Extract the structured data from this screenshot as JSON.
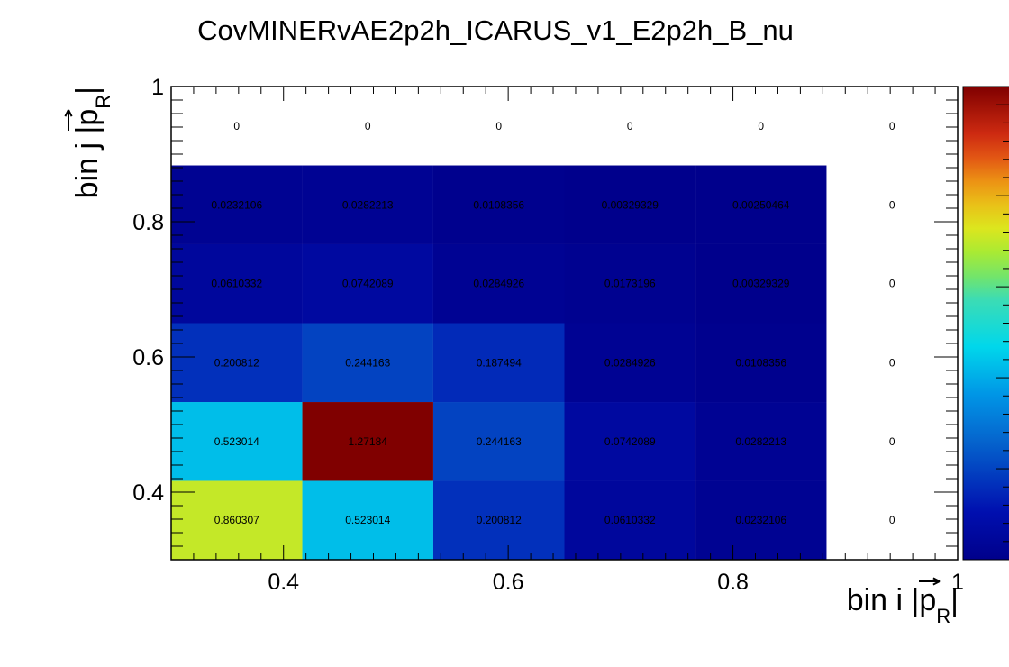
{
  "chart_data": {
    "type": "heatmap",
    "title": "CovMINERvAE2p2h_ICARUS_v1_E2p2h_B_nu",
    "xlabel": "bin i |p_R|",
    "ylabel": "bin j |p_R|",
    "x_axis_label": {
      "prefix": "bin i |",
      "symbol": "p",
      "subscript": "R",
      "suffix": "|"
    },
    "y_axis_label": {
      "prefix": "bin j |",
      "symbol": "p",
      "subscript": "R",
      "suffix": "|"
    },
    "x_ticks": [
      "0.4",
      "0.6",
      "0.8",
      "1"
    ],
    "y_ticks": [
      "0.4",
      "0.6",
      "0.8",
      "1"
    ],
    "xlim": [
      0.3,
      1.0
    ],
    "ylim": [
      0.3,
      1.0
    ],
    "bin_edges": [
      0.3,
      0.4167,
      0.5333,
      0.65,
      0.7667,
      0.8833,
      1.0
    ],
    "z_range": [
      0,
      1.27184
    ],
    "colormap": "jet",
    "rows": [
      [
        "0.860307",
        "0.523014",
        "0.200812",
        "0.0610332",
        "0.0232106",
        "0"
      ],
      [
        "0.523014",
        "1.27184",
        "0.244163",
        "0.0742089",
        "0.0282213",
        "0"
      ],
      [
        "0.200812",
        "0.244163",
        "0.187494",
        "0.0284926",
        "0.0108356",
        "0"
      ],
      [
        "0.0610332",
        "0.0742089",
        "0.0284926",
        "0.0173196",
        "0.00329329",
        "0"
      ],
      [
        "0.0232106",
        "0.0282213",
        "0.0108356",
        "0.00329329",
        "0.00250464",
        "0"
      ],
      [
        "0",
        "0",
        "0",
        "0",
        "0",
        "0"
      ]
    ],
    "grid": false,
    "colorbar": "right"
  }
}
